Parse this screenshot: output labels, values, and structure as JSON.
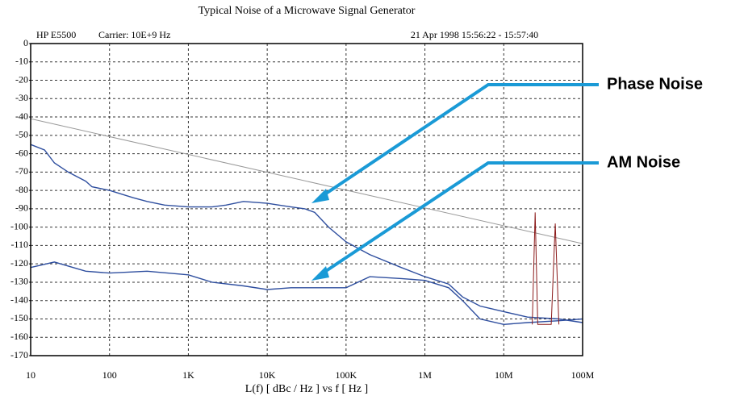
{
  "chart_data": {
    "type": "line",
    "title": "Typical Noise of a Microwave Signal Generator",
    "instrument": "HP E5500",
    "carrier": "Carrier: 10E+9 Hz",
    "timestamp": "21 Apr 1998 15:56:22 - 15:57:40",
    "xlabel": "L(f)  [ dBc / Hz ]  vs  f  [ Hz ]",
    "xscale": "log",
    "grid": true,
    "xlim": [
      10,
      100000000
    ],
    "ylim": [
      -170,
      0
    ],
    "xticks": [
      {
        "value": 10,
        "label": "10"
      },
      {
        "value": 100,
        "label": "100"
      },
      {
        "value": 1000,
        "label": "1K"
      },
      {
        "value": 10000,
        "label": "10K"
      },
      {
        "value": 100000,
        "label": "100K"
      },
      {
        "value": 1000000,
        "label": "1M"
      },
      {
        "value": 10000000,
        "label": "10M"
      },
      {
        "value": 100000000,
        "label": "100M"
      }
    ],
    "yticks": [
      0,
      -10,
      -20,
      -30,
      -40,
      -50,
      -60,
      -70,
      -80,
      -90,
      -100,
      -110,
      -120,
      -130,
      -140,
      -150,
      -160,
      -170
    ],
    "series": [
      {
        "name": "Phase Noise",
        "color": "#2f4f9f",
        "x": [
          10,
          15,
          20,
          30,
          50,
          60,
          100,
          200,
          300,
          500,
          1000,
          2000,
          3000,
          5000,
          10000,
          20000,
          30000,
          40000,
          60000,
          100000,
          200000,
          500000,
          1000000,
          2000000,
          3000000,
          5000000,
          10000000,
          20000000,
          50000000,
          100000000
        ],
        "values": [
          -55,
          -58,
          -65,
          -70,
          -75,
          -78,
          -80,
          -84,
          -86,
          -88,
          -89,
          -89,
          -88,
          -86,
          -87,
          -89,
          -90,
          -92,
          -100,
          -108,
          -115,
          -122,
          -127,
          -131,
          -138,
          -143,
          -146,
          -149,
          -150,
          -152
        ]
      },
      {
        "name": "AM Noise",
        "color": "#2f4f9f",
        "x": [
          10,
          20,
          50,
          100,
          300,
          1000,
          2000,
          5000,
          10000,
          20000,
          50000,
          100000,
          200000,
          500000,
          1000000,
          2000000,
          3000000,
          5000000,
          10000000,
          20000000,
          50000000,
          100000000
        ],
        "values": [
          -122,
          -119,
          -124,
          -125,
          -124,
          -126,
          -130,
          -132,
          -134,
          -133,
          -133,
          -133,
          -127,
          -128,
          -129,
          -133,
          -140,
          -150,
          -153,
          -152,
          -151,
          -150
        ]
      },
      {
        "color": "#999999",
        "x": [
          10,
          100000000
        ],
        "values": [
          -41,
          -109
        ]
      },
      {
        "color": "#8b1a1a",
        "x": [
          23000000,
          25000000,
          27000000,
          40000000,
          45000000,
          50000000
        ],
        "values": [
          -153,
          -92,
          -153,
          -153,
          -98,
          -153
        ]
      }
    ]
  }
}
